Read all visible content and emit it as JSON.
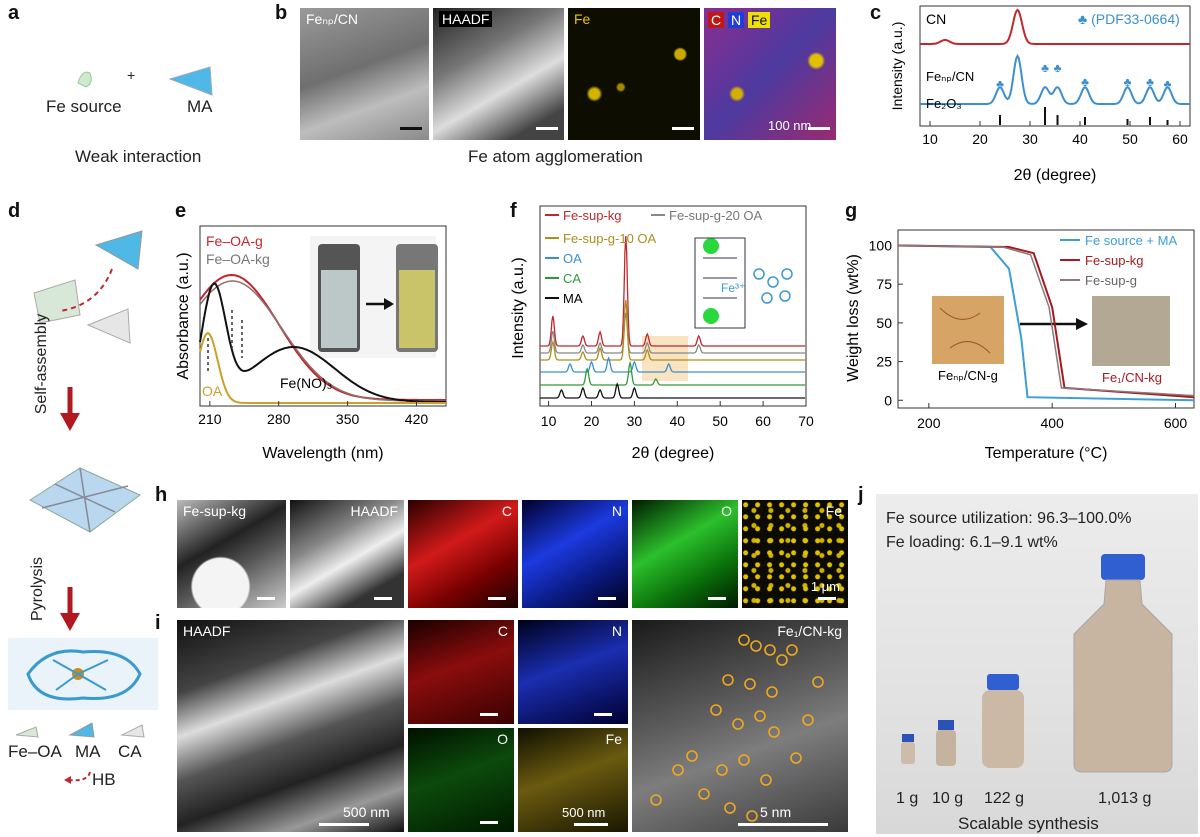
{
  "panels": {
    "a": {
      "label": "a",
      "items": [
        "Fe source",
        "+",
        "MA"
      ],
      "caption": "Weak interaction"
    },
    "b": {
      "label": "b",
      "tiles": [
        "Feₙₚ/CN",
        "HAADF",
        "Fe",
        "C",
        "N",
        "Fe"
      ],
      "scale": "100 nm",
      "caption": "Fe atom agglomeration"
    },
    "c": {
      "label": "c",
      "xlabel": "2θ (degree)",
      "ylabel": "Intensity (a.u.)",
      "legend_ref": "♣ (PDF33-0664)",
      "series": [
        "CN",
        "Feₙₚ/CN",
        "Fe₂O₃"
      ],
      "xticks": [
        "10",
        "20",
        "30",
        "40",
        "50",
        "60"
      ]
    },
    "d": {
      "label": "d",
      "steps": [
        "Self-assembly",
        "Pyrolysis"
      ],
      "legend": [
        "Fe–OA",
        "MA",
        "CA",
        "HB"
      ]
    },
    "e": {
      "label": "e",
      "xlabel": "Wavelength (nm)",
      "ylabel": "Absorbance (a.u.)",
      "series": [
        "Fe–OA-g",
        "Fe–OA-kg",
        "Fe(NO)₃",
        "OA"
      ],
      "xticks": [
        "210",
        "280",
        "350",
        "420"
      ]
    },
    "f": {
      "label": "f",
      "xlabel": "2θ (degree)",
      "ylabel": "Intensity (a.u.)",
      "series": [
        "Fe-sup-kg",
        "Fe-sup-g-20 OA",
        "Fe-sup-g-10 OA",
        "OA",
        "CA",
        "MA"
      ],
      "xticks": [
        "10",
        "20",
        "30",
        "40",
        "50",
        "60",
        "70"
      ],
      "ion": "Fe³⁺"
    },
    "g": {
      "label": "g",
      "xlabel": "Temperature (°C)",
      "ylabel": "Weight loss (wt%)",
      "series": [
        "Fe source + MA",
        "Fe-sup-kg",
        "Fe-sup-g"
      ],
      "xticks": [
        "200",
        "400",
        "600"
      ],
      "yticks": [
        "100",
        "75",
        "50",
        "25",
        "0"
      ],
      "photo_left": "Feₙₚ/CN-g",
      "photo_right": "Fe₁/CN-kg"
    },
    "h": {
      "label": "h",
      "tiles": [
        "Fe-sup-kg",
        "HAADF",
        "C",
        "N",
        "O",
        "Fe"
      ],
      "scale": "1 μm"
    },
    "i": {
      "label": "i",
      "tiles": [
        "HAADF",
        "C",
        "N",
        "O",
        "Fe",
        "Fe₁/CN-kg"
      ],
      "scale_big": "500 nm",
      "scale_small": "500 nm",
      "scale_right": "5 nm"
    },
    "j": {
      "label": "j",
      "line1": "Fe source utilization: 96.3–100.0%",
      "line2": "Fe loading: 6.1–9.1 wt%",
      "bottles": [
        "1 g",
        "10 g",
        "122 g",
        "1,013 g"
      ],
      "caption": "Scalable synthesis"
    }
  },
  "chart_data": [
    {
      "type": "line",
      "title": "c",
      "xlabel": "2θ (degree)",
      "ylabel": "Intensity (a.u.)",
      "xlim": [
        8,
        62
      ],
      "series": [
        {
          "name": "CN",
          "peaks": [
            13,
            27.5
          ]
        },
        {
          "name": "Feₙₚ/CN",
          "peaks": [
            24,
            27.5,
            33,
            35.5,
            41,
            49.5,
            54,
            57.5
          ]
        },
        {
          "name": "Fe₂O₃",
          "peaks": [
            24,
            33,
            35.5,
            41,
            49.5,
            54,
            57.5
          ]
        }
      ]
    },
    {
      "type": "line",
      "title": "e",
      "xlabel": "Wavelength (nm)",
      "ylabel": "Absorbance (a.u.)",
      "xlim": [
        200,
        450
      ],
      "series": [
        {
          "name": "Fe–OA-g",
          "peak": 232
        },
        {
          "name": "Fe–OA-kg",
          "peak": 232
        },
        {
          "name": "Fe(NO)₃",
          "peaks": [
            218,
            295
          ]
        },
        {
          "name": "OA",
          "peak": 210
        }
      ]
    },
    {
      "type": "line",
      "title": "f",
      "xlabel": "2θ (degree)",
      "ylabel": "Intensity (a.u.)",
      "xlim": [
        8,
        70
      ],
      "series": [
        {
          "name": "Fe-sup-kg"
        },
        {
          "name": "Fe-sup-g-20 OA"
        },
        {
          "name": "Fe-sup-g-10 OA"
        },
        {
          "name": "OA"
        },
        {
          "name": "CA"
        },
        {
          "name": "MA"
        }
      ]
    },
    {
      "type": "line",
      "title": "g",
      "xlabel": "Temperature (°C)",
      "ylabel": "Weight loss (wt%)",
      "xlim": [
        150,
        630
      ],
      "ylim": [
        -5,
        110
      ],
      "series": [
        {
          "name": "Fe source + MA",
          "x": [
            150,
            300,
            330,
            350,
            360,
            630
          ],
          "y": [
            100,
            99,
            85,
            40,
            2,
            0
          ]
        },
        {
          "name": "Fe-sup-kg",
          "x": [
            150,
            330,
            370,
            400,
            420,
            630
          ],
          "y": [
            100,
            99,
            95,
            60,
            8,
            2
          ]
        },
        {
          "name": "Fe-sup-g",
          "x": [
            150,
            320,
            365,
            395,
            415,
            630
          ],
          "y": [
            100,
            99,
            94,
            60,
            8,
            3
          ]
        }
      ]
    }
  ],
  "colors": {
    "red": "#c0282d",
    "blue": "#3b8fd0",
    "olive": "#a7901b",
    "green": "#2e9a3c",
    "black": "#111111",
    "gray": "#888888",
    "orange": "#e8a23a"
  }
}
